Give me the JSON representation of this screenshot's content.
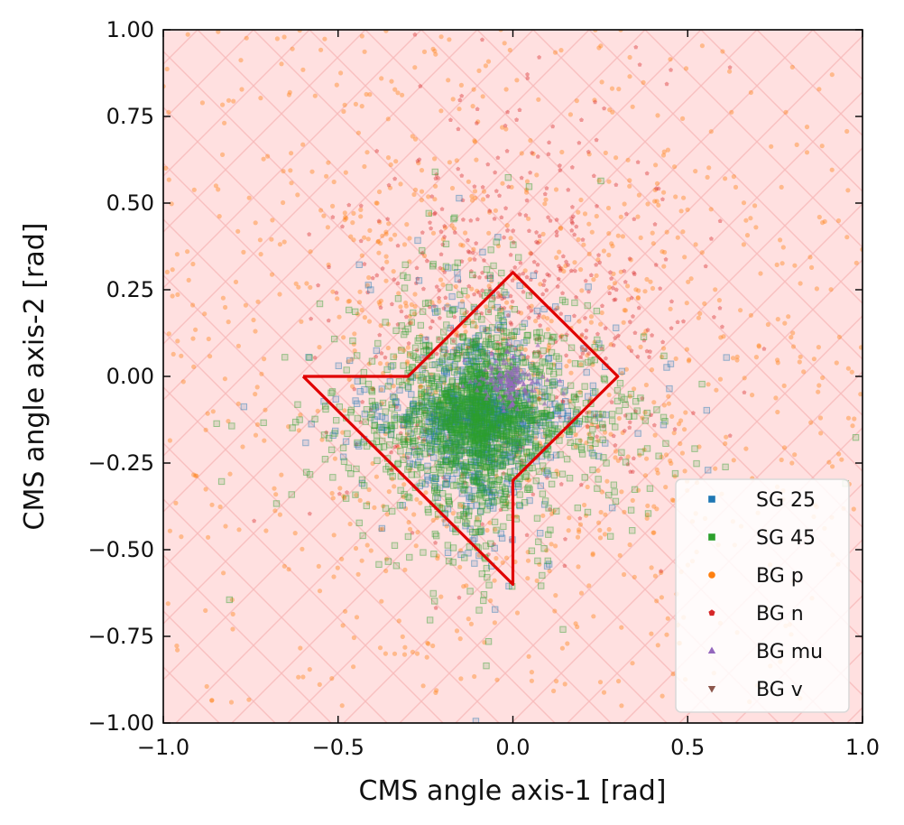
{
  "chart_data": {
    "type": "scatter",
    "title": "",
    "xlabel": "CMS angle axis-1 [rad]",
    "ylabel": "CMS angle axis-2 [rad]",
    "xlim": [
      -1.0,
      1.0
    ],
    "ylim": [
      -1.0,
      1.0
    ],
    "xticks": [
      "−1.0",
      "−0.5",
      "0.0",
      "0.5",
      "1.0"
    ],
    "xtick_values": [
      -1.0,
      -0.5,
      0.0,
      0.5,
      1.0
    ],
    "yticks": [
      "−1.00",
      "−0.75",
      "−0.50",
      "−0.25",
      "0.00",
      "0.25",
      "0.50",
      "0.75",
      "1.00"
    ],
    "ytick_values": [
      -1.0,
      -0.75,
      -0.5,
      -0.25,
      0.0,
      0.25,
      0.5,
      0.75,
      1.0
    ],
    "grid": false,
    "background_color": "#ffe0e0",
    "hatch_color": "#f6b8b8",
    "legend_position": "lower right",
    "series": [
      {
        "name": "SG 25",
        "color": "#1f77b4",
        "marker": "square",
        "count": 900,
        "spread": 0.18,
        "cluster": "diamond"
      },
      {
        "name": "SG 45",
        "color": "#2ca02c",
        "marker": "square",
        "count": 1600,
        "spread": 0.22,
        "cluster": "diamond"
      },
      {
        "name": "BG p",
        "color": "#ff7f0e",
        "marker": "circle",
        "count": 1100,
        "spread": 0.45,
        "cluster": "wide"
      },
      {
        "name": "BG n",
        "color": "#d62728",
        "marker": "pentagon",
        "count": 500,
        "spread": 0.35,
        "cluster": "upper"
      },
      {
        "name": "BG mu",
        "color": "#9467bd",
        "marker": "triangle-up",
        "count": 150,
        "spread": 0.03,
        "cluster": "core"
      },
      {
        "name": "BG v",
        "color": "#8c564b",
        "marker": "triangle-down",
        "count": 0,
        "spread": 0.0,
        "cluster": "none"
      }
    ],
    "cut_polygon": {
      "color": "#e00000",
      "points": [
        [
          -0.6,
          0.0
        ],
        [
          -0.3,
          0.0
        ],
        [
          0.0,
          0.3
        ],
        [
          0.3,
          0.0
        ],
        [
          0.0,
          -0.3
        ],
        [
          0.0,
          -0.6
        ],
        [
          -0.6,
          0.0
        ]
      ]
    }
  }
}
